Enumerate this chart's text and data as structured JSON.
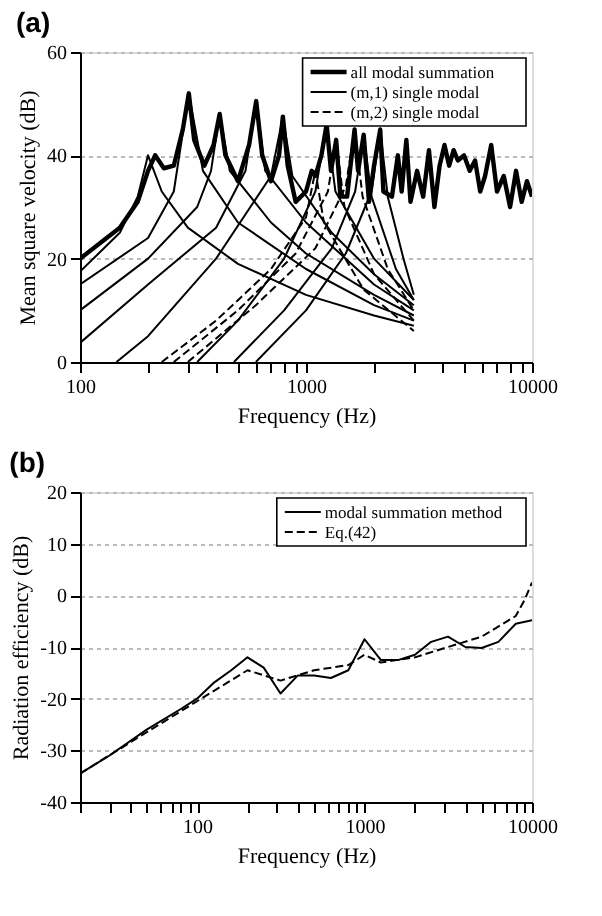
{
  "chart_data": [
    {
      "type": "line",
      "title": "(a)",
      "xlabel": "Frequency (Hz)",
      "ylabel": "Mean square velocity (dB)",
      "log": "x",
      "grid": "y",
      "legend": "top right",
      "xlim": [
        100,
        10000
      ],
      "ylim": [
        0,
        60
      ],
      "yticks": [
        0,
        20,
        40,
        60
      ],
      "xticks": [
        100,
        {
          "value": 200,
          "label": null
        },
        {
          "value": 300,
          "label": null
        },
        {
          "value": 400,
          "label": null
        },
        {
          "value": 500,
          "label": null
        },
        {
          "value": 600,
          "label": null
        },
        {
          "value": 700,
          "label": null
        },
        {
          "value": 800,
          "label": null
        },
        {
          "value": 900,
          "label": null
        },
        1000,
        {
          "value": 2000,
          "label": null
        },
        {
          "value": 3000,
          "label": null
        },
        {
          "value": 4000,
          "label": null
        },
        {
          "value": 5000,
          "label": null
        },
        {
          "value": 6000,
          "label": null
        },
        {
          "value": 7000,
          "label": null
        },
        {
          "value": 8000,
          "label": null
        },
        {
          "value": 9000,
          "label": null
        },
        10000
      ],
      "series": [
        {
          "name": "all modal summation",
          "color": "#000000",
          "line_style": "solid",
          "x": [
            100,
            150,
            180,
            200,
            215,
            235,
            260,
            285,
            303,
            320,
            355,
            390,
            415,
            440,
            500,
            560,
            602,
            640,
            700,
            760,
            790,
            830,
            900,
            1000,
            1060,
            1100,
            1170,
            1234,
            1290,
            1360,
            1420,
            1520,
            1640,
            1700,
            1800,
            1900,
            2000,
            2130,
            2200,
            2400,
            2550,
            2650,
            2780,
            2900,
            3100,
            3300,
            3500,
            3700,
            3900,
            4100,
            4300,
            4500,
            4700,
            5000,
            5300,
            5600,
            5900,
            6200,
            6600,
            7000,
            7500,
            8000,
            8500,
            9000,
            9500,
            10000
          ],
          "values": [
            20,
            26,
            31,
            37,
            40,
            37.5,
            38,
            45,
            52,
            43,
            38,
            42,
            48,
            40,
            35,
            42,
            50.5,
            40,
            35,
            40,
            47.5,
            38,
            31,
            33,
            37,
            36,
            40,
            46,
            37,
            43,
            32,
            32,
            45,
            37,
            44,
            31,
            38,
            45,
            33,
            32,
            40,
            33,
            43,
            31,
            37,
            32,
            41,
            30,
            38,
            42,
            38,
            41,
            39,
            40,
            37,
            39,
            33,
            36,
            42,
            33,
            36,
            30,
            37,
            31,
            35,
            32
          ]
        },
        {
          "name": "(m,1) single modal",
          "color": "#000000",
          "line_style": "solid",
          "x": [
            100,
            150,
            180,
            200,
            230,
            300,
            500,
            1000,
            2000,
            3000
          ],
          "values": [
            17.5,
            25,
            32,
            40,
            33,
            26,
            19,
            13,
            9,
            7
          ]
        },
        {
          "color": "#000000",
          "line_style": "solid",
          "x": [
            100,
            200,
            260,
            303,
            350,
            500,
            1000,
            2000,
            3000
          ],
          "values": [
            15,
            24,
            33,
            52,
            37,
            27,
            18,
            11,
            8
          ]
        },
        {
          "color": "#000000",
          "line_style": "solid",
          "x": [
            100,
            200,
            330,
            380,
            415,
            460,
            700,
            1000,
            2000,
            3000
          ],
          "values": [
            10,
            20,
            30,
            37,
            48,
            37,
            27,
            21,
            13,
            9
          ]
        },
        {
          "color": "#000000",
          "line_style": "solid",
          "x": [
            100,
            200,
            400,
            540,
            602,
            660,
            1000,
            2000,
            3000
          ],
          "values": [
            3.7,
            15,
            26,
            37,
            50.5,
            37,
            27,
            15,
            10
          ]
        },
        {
          "color": "#000000",
          "line_style": "solid",
          "x": [
            145,
            200,
            400,
            700,
            790,
            870,
            1300,
            2000,
            3000
          ],
          "values": [
            0,
            5,
            20,
            36,
            47.5,
            36,
            25,
            17,
            11
          ]
        },
        {
          "color": "#000000",
          "line_style": "solid",
          "x": [
            330,
            500,
            800,
            1100,
            1234,
            1350,
            2000,
            3000
          ],
          "values": [
            0,
            8,
            20,
            33,
            46,
            33,
            20,
            12
          ]
        },
        {
          "color": "#000000",
          "line_style": "solid",
          "x": [
            480,
            800,
            1300,
            1650,
            1800,
            1950,
            2500,
            3000
          ],
          "values": [
            0,
            10,
            22,
            33,
            44,
            32,
            18,
            12
          ]
        },
        {
          "color": "#000000",
          "line_style": "solid",
          "x": [
            600,
            1000,
            1500,
            1950,
            2130,
            2300,
            2700,
            3000
          ],
          "values": [
            0,
            10,
            21,
            33,
            45,
            32,
            20,
            13
          ]
        },
        {
          "name": "(m,2) single modal",
          "color": "#000000",
          "line_style": "dashed",
          "x": [
            230,
            400,
            700,
            1000,
            1100,
            1200,
            1800,
            3000
          ],
          "values": [
            0,
            8,
            18,
            28,
            37,
            27,
            14,
            6
          ]
        },
        {
          "color": "#000000",
          "line_style": "dashed",
          "x": [
            260,
            500,
            900,
            1250,
            1360,
            1480,
            2000,
            3000
          ],
          "values": [
            0,
            10,
            21,
            33,
            43,
            30,
            17,
            8
          ]
        },
        {
          "color": "#000000",
          "line_style": "dashed",
          "x": [
            300,
            600,
            1100,
            1500,
            1640,
            1780,
            2300,
            3000
          ],
          "values": [
            0,
            11,
            22,
            34,
            45,
            32,
            18,
            10
          ]
        }
      ]
    },
    {
      "type": "line",
      "title": "(b)",
      "xlabel": "Frequency (Hz)",
      "ylabel": "Radiation efficiency (dB)",
      "log": "x",
      "grid": "y",
      "legend": "top right",
      "xlim": [
        20,
        10000
      ],
      "ylim": [
        -40,
        20
      ],
      "yticks": [
        -40,
        -30,
        -20,
        -10,
        0,
        10,
        20
      ],
      "xticks": [
        {
          "value": 20,
          "label": null
        },
        {
          "value": 30,
          "label": null
        },
        {
          "value": 40,
          "label": null
        },
        {
          "value": 50,
          "label": null
        },
        {
          "value": 60,
          "label": null
        },
        {
          "value": 70,
          "label": null
        },
        {
          "value": 80,
          "label": null
        },
        {
          "value": 90,
          "label": null
        },
        100,
        {
          "value": 200,
          "label": null
        },
        {
          "value": 300,
          "label": null
        },
        {
          "value": 400,
          "label": null
        },
        {
          "value": 500,
          "label": null
        },
        {
          "value": 600,
          "label": null
        },
        {
          "value": 700,
          "label": null
        },
        {
          "value": 800,
          "label": null
        },
        {
          "value": 900,
          "label": null
        },
        1000,
        {
          "value": 2000,
          "label": null
        },
        {
          "value": 3000,
          "label": null
        },
        {
          "value": 4000,
          "label": null
        },
        {
          "value": 5000,
          "label": null
        },
        {
          "value": 6000,
          "label": null
        },
        {
          "value": 7000,
          "label": null
        },
        {
          "value": 8000,
          "label": null
        },
        {
          "value": 9000,
          "label": null
        },
        10000
      ],
      "series": [
        {
          "name": "modal summation method",
          "color": "#000000",
          "line_style": "solid",
          "x": [
            20,
            30,
            50,
            80,
            100,
            125,
            160,
            200,
            250,
            315,
            400,
            500,
            630,
            800,
            1000,
            1250,
            1600,
            2000,
            2500,
            3150,
            4000,
            5000,
            6300,
            8000,
            10000
          ],
          "values": [
            -34.5,
            -31,
            -26,
            -22,
            -20,
            -17,
            -14.5,
            -12,
            -14,
            -19,
            -15.5,
            -15.5,
            -16,
            -14.5,
            -8.5,
            -12.5,
            -12.5,
            -11.5,
            -9,
            -8,
            -10,
            -10.2,
            -9,
            -5.5,
            -4.8
          ]
        },
        {
          "name": "Eq.(42)",
          "color": "#000000",
          "line_style": "dashed",
          "x": [
            20,
            50,
            100,
            200,
            315,
            500,
            800,
            1000,
            1250,
            2000,
            3150,
            5000,
            8000,
            9000,
            10000
          ],
          "values": [
            -34.5,
            -26.5,
            -20.5,
            -14.5,
            -16.5,
            -14.5,
            -13.5,
            -11.5,
            -13,
            -12,
            -10,
            -8,
            -4,
            -1,
            2.5
          ]
        }
      ]
    }
  ]
}
